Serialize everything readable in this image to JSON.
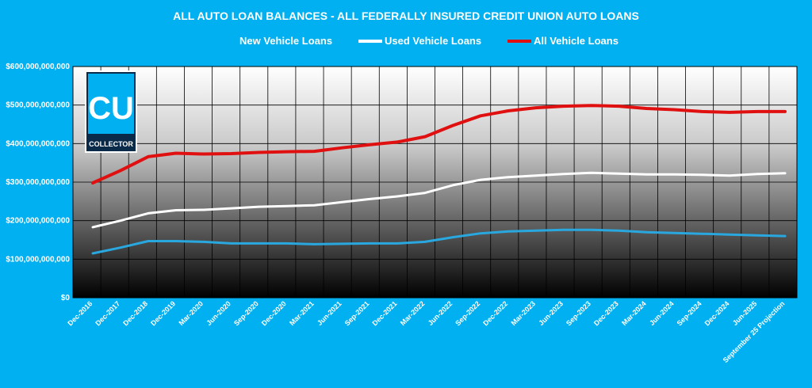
{
  "chart_data": {
    "type": "line",
    "title": "ALL AUTO LOAN BALANCES - ALL FEDERALLY INSURED CREDIT UNION AUTO LOANS",
    "xlabel": "",
    "ylabel": "",
    "ylim": [
      0,
      600000000000
    ],
    "y_ticks": [
      {
        "value": 0,
        "label": "$0"
      },
      {
        "value": 100000000000,
        "label": "$100,000,000,000"
      },
      {
        "value": 200000000000,
        "label": "$200,000,000,000"
      },
      {
        "value": 300000000000,
        "label": "$300,000,000,000"
      },
      {
        "value": 400000000000,
        "label": "$400,000,000,000"
      },
      {
        "value": 500000000000,
        "label": "$500,000,000,000"
      },
      {
        "value": 600000000000,
        "label": "$600,000,000,000"
      }
    ],
    "grid": true,
    "legend_position": "top",
    "categories": [
      "Dec-2016",
      "Dec-2017",
      "Dec-2018",
      "Dec-2019",
      "Mar-2020",
      "Jun-2020",
      "Sep-2020",
      "Dec-2020",
      "Mar-2021",
      "Jun-2021",
      "Sep-2021",
      "Dec-2021",
      "Mar-2022",
      "Jun-2022",
      "Sep-2022",
      "Dec-2022",
      "Mar-2023",
      "Jun-2023",
      "Sep-2023",
      "Dec-2023",
      "Mar-2024",
      "Jun-2024",
      "Sep-2024",
      "Dec-2024",
      "Jun-2025",
      "September 25 Projection"
    ],
    "series": [
      {
        "name": "New Vehicle Loans",
        "color": "#29a8e0",
        "values": [
          115000000000,
          130000000000,
          147000000000,
          147000000000,
          145000000000,
          141000000000,
          141000000000,
          141000000000,
          139000000000,
          140000000000,
          141000000000,
          141000000000,
          145000000000,
          157000000000,
          167000000000,
          172000000000,
          174000000000,
          176000000000,
          176000000000,
          174000000000,
          170000000000,
          168000000000,
          166000000000,
          164000000000,
          162000000000,
          160000000000
        ]
      },
      {
        "name": "Used Vehicle Loans",
        "color": "#ffffff",
        "values": [
          183000000000,
          200000000000,
          219000000000,
          227000000000,
          228000000000,
          232000000000,
          236000000000,
          238000000000,
          240000000000,
          248000000000,
          256000000000,
          263000000000,
          272000000000,
          292000000000,
          306000000000,
          313000000000,
          317000000000,
          321000000000,
          324000000000,
          322000000000,
          320000000000,
          320000000000,
          319000000000,
          317000000000,
          321000000000,
          323000000000
        ]
      },
      {
        "name": "All Vehicle Loans",
        "color": "#e01010",
        "values": [
          298000000000,
          330000000000,
          366000000000,
          375000000000,
          373000000000,
          374000000000,
          377000000000,
          379000000000,
          380000000000,
          389000000000,
          397000000000,
          404000000000,
          418000000000,
          447000000000,
          472000000000,
          485000000000,
          493000000000,
          497000000000,
          499000000000,
          497000000000,
          491000000000,
          488000000000,
          483000000000,
          481000000000,
          483000000000,
          483000000000
        ]
      }
    ]
  },
  "logo": {
    "letters": "CU",
    "subtitle": "COLLECTOR"
  }
}
